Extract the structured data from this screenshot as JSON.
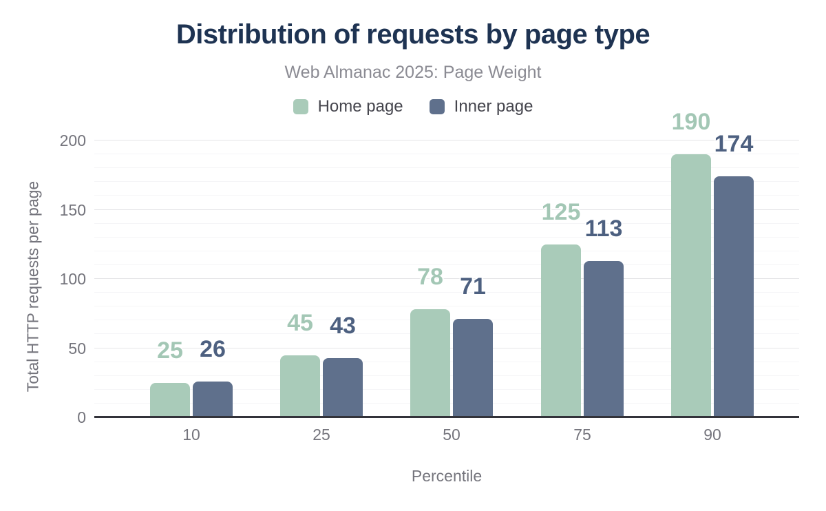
{
  "header": {
    "title": "Distribution of requests by page type",
    "subtitle": "Web Almanac 2025: Page Weight"
  },
  "chart_data": {
    "type": "bar",
    "title": "Distribution of requests by page type",
    "subtitle": "Web Almanac 2025: Page Weight",
    "categories": [
      "10",
      "25",
      "50",
      "75",
      "90"
    ],
    "series": [
      {
        "name": "Home page",
        "color": "#a9cbb9",
        "label_color": "#a3c7b5",
        "values": [
          25,
          45,
          78,
          125,
          190
        ]
      },
      {
        "name": "Inner page",
        "color": "#5f708c",
        "label_color": "#4d6080",
        "values": [
          26,
          43,
          71,
          113,
          174
        ]
      }
    ],
    "xlabel": "Percentile",
    "ylabel": "Total HTTP requests per page",
    "ylim": [
      0,
      200
    ],
    "y_major_step": 50,
    "y_minor_step": 10,
    "y_tick_labels": [
      "0",
      "50",
      "100",
      "150",
      "200"
    ],
    "grid": true,
    "legend_position": "top",
    "value_labels": true
  },
  "colors": {
    "title": "#1e3352",
    "subtitle": "#8b8b93",
    "axis_text": "#74747c",
    "axis_line": "#33333a",
    "grid_major": "#e4e4e7",
    "grid_minor": "#f5f5f7",
    "background": "#ffffff"
  }
}
